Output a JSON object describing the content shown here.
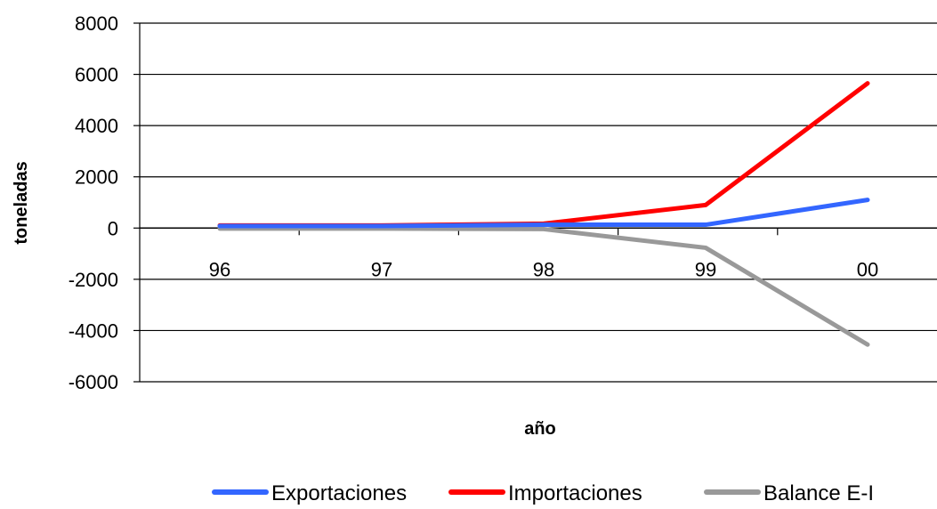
{
  "chart_data": {
    "type": "line",
    "title": "",
    "xlabel": "año",
    "ylabel": "toneladas",
    "categories": [
      "96",
      "97",
      "98",
      "99",
      "00"
    ],
    "ylim": [
      -6000,
      8000
    ],
    "yticks": [
      "8000",
      "6000",
      "4000",
      "2000",
      "0",
      "-2000",
      "-4000",
      "-6000"
    ],
    "grid": true,
    "legend_position": "bottom",
    "series": [
      {
        "name": "Exportaciones",
        "color": "#3366ff",
        "values": [
          80,
          80,
          130,
          130,
          1100
        ]
      },
      {
        "name": "Importaciones",
        "color": "#ff0000",
        "values": [
          100,
          100,
          170,
          900,
          5650
        ]
      },
      {
        "name": "Balance E-I",
        "color": "#999999",
        "values": [
          -20,
          -20,
          -40,
          -770,
          -4550
        ]
      }
    ]
  }
}
